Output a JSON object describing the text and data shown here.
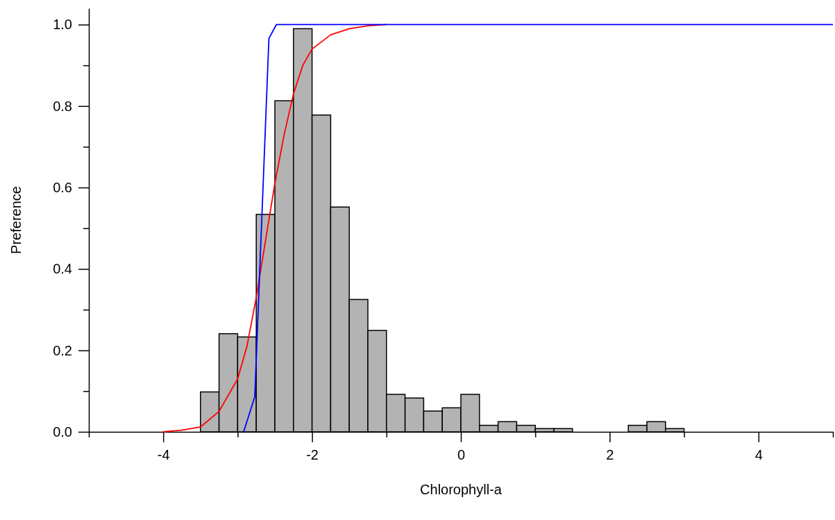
{
  "chart_data": {
    "type": "histogram",
    "xlabel": "Chlorophyll-a",
    "ylabel": "Preference",
    "bins": [
      -3.5,
      -3.25,
      -3.0,
      -2.75,
      -2.5,
      -2.25,
      -2.0,
      -1.75,
      -1.5,
      -1.25,
      -1.0,
      -0.75,
      -0.5,
      -0.25,
      0,
      0.25,
      0.5,
      0.75,
      1.0,
      1.25,
      1.5,
      1.75,
      2.0,
      2.25,
      2.5,
      2.75,
      3.0
    ],
    "values": [
      0.098,
      0.241,
      0.233,
      0.534,
      0.813,
      0.99,
      0.778,
      0.552,
      0.325,
      0.249,
      0.092,
      0.083,
      0.051,
      0.059,
      0.092,
      0.016,
      0.025,
      0.016,
      0.008,
      0.008,
      0,
      0,
      0,
      0.016,
      0.025,
      0.008
    ],
    "color": "#b3b3b3",
    "series": [
      {
        "type": "line",
        "color": "#ff0000",
        "x": [
          -4,
          -3.75,
          -3.5,
          -3.25,
          -3.0,
          -2.875,
          -2.75,
          -2.625,
          -2.5,
          -2.375,
          -2.25,
          -2.125,
          -2.0,
          -1.75,
          -1.5,
          -1.25,
          -1.0
        ],
        "values": [
          0,
          0.004,
          0.012,
          0.05,
          0.13,
          0.21,
          0.33,
          0.47,
          0.61,
          0.73,
          0.83,
          0.9,
          0.94,
          0.975,
          0.99,
          0.997,
          1.0
        ]
      },
      {
        "type": "line",
        "color": "#0000ff",
        "x": [
          -2.92,
          -2.77,
          -2.58,
          -2.48,
          5
        ],
        "values": [
          0,
          0.086,
          0.966,
          1.0,
          1.0
        ]
      }
    ],
    "xlim": [
      -5,
      5
    ],
    "ylim": [
      0,
      1.04
    ],
    "xticks": [
      {
        "value": -5,
        "label": null
      },
      -4,
      {
        "value": -3,
        "label": null
      },
      -2,
      {
        "value": -1,
        "label": null
      },
      0,
      {
        "value": 1,
        "label": null
      },
      2,
      {
        "value": 3,
        "label": null
      },
      4,
      {
        "value": 5,
        "label": null
      }
    ],
    "yticks": [
      {
        "value": 0,
        "label": "0.0"
      },
      {
        "value": 0.1,
        "label": null
      },
      {
        "value": 0.2,
        "label": "0.2"
      },
      {
        "value": 0.3,
        "label": null
      },
      {
        "value": 0.4,
        "label": "0.4"
      },
      {
        "value": 0.5,
        "label": null
      },
      {
        "value": 0.6,
        "label": "0.6"
      },
      {
        "value": 0.7,
        "label": null
      },
      {
        "value": 0.8,
        "label": "0.8"
      },
      {
        "value": 0.9,
        "label": null
      },
      {
        "value": 1.0,
        "label": "1.0"
      }
    ],
    "grid": false,
    "marker": "none",
    "line_style": "solid"
  }
}
